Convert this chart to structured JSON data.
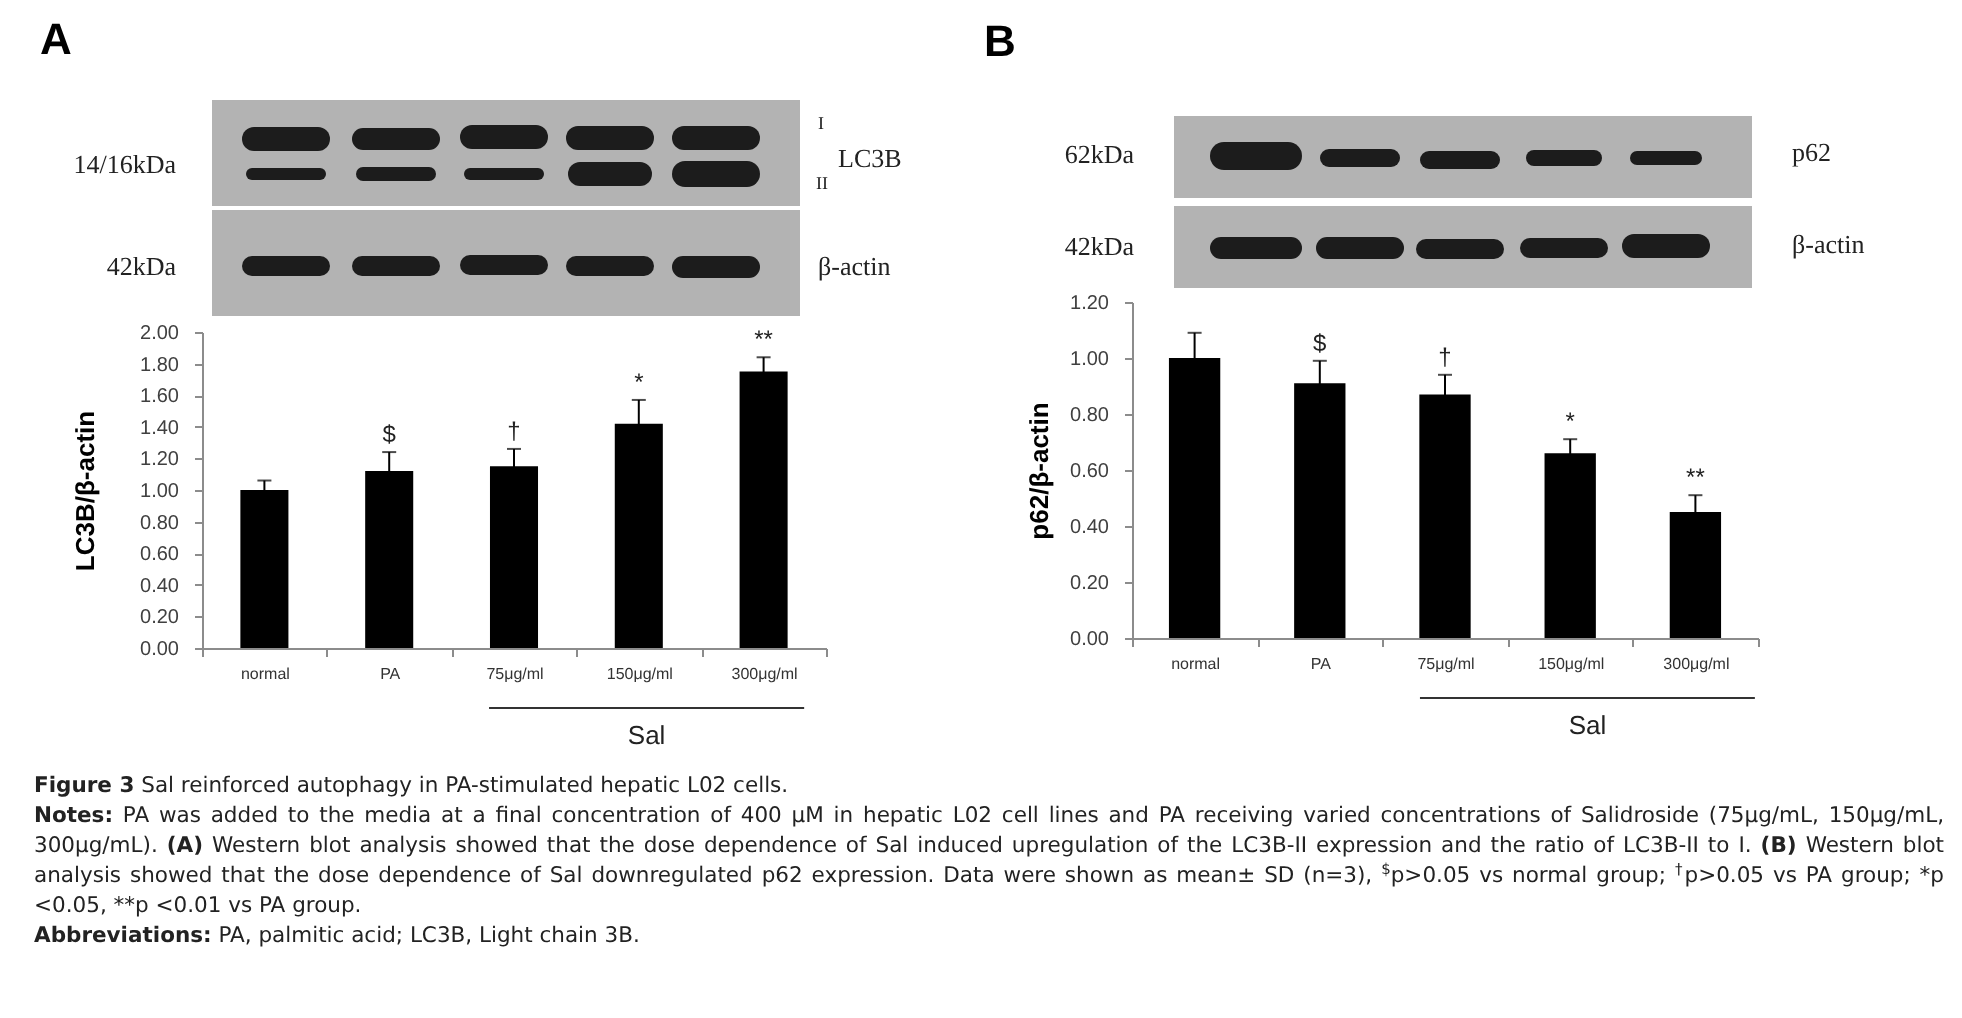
{
  "chart_data": [
    {
      "type": "bar",
      "title": "A",
      "ylabel": "LC3B/β-actin",
      "categories": [
        "normal",
        "PA",
        "75μg/ml",
        "150μg/ml",
        "300μg/ml"
      ],
      "values": [
        1.0,
        1.12,
        1.15,
        1.42,
        1.75
      ],
      "errors": [
        0.06,
        0.12,
        0.11,
        0.15,
        0.09
      ],
      "color": "#000000",
      "ylim": [
        0,
        2
      ],
      "yticks": [
        {
          "value": 0,
          "label": "0.00"
        },
        {
          "value": 0.2,
          "label": "0.20"
        },
        {
          "value": 0.4,
          "label": "0.40"
        },
        {
          "value": 0.6,
          "label": "0.60"
        },
        {
          "value": 0.8,
          "label": "0.80"
        },
        {
          "value": 1,
          "label": "1.00"
        },
        {
          "value": 1.2,
          "label": "1.20"
        },
        {
          "value": 1.4,
          "label": "1.40"
        },
        {
          "value": 1.6,
          "label": "1.60"
        },
        {
          "value": 1.8,
          "label": "1.80"
        },
        {
          "value": 2,
          "label": "2.00"
        }
      ],
      "annotations": [
        "14/16kDa",
        "42kDa",
        "I",
        "II",
        "LC3B",
        "β-actin",
        "Sal",
        {
          "text": "$",
          "x": "PA",
          "y": 1.24
        },
        {
          "text": "†",
          "x": "75μg/ml",
          "y": 1.26
        },
        {
          "text": "*",
          "x": "150μg/ml",
          "y": 1.57
        },
        {
          "text": "**",
          "x": "300μg/ml",
          "y": 1.84
        }
      ]
    },
    {
      "type": "bar",
      "title": "B",
      "ylabel": "p62/β-actin",
      "categories": [
        "normal",
        "PA",
        "75μg/ml",
        "150μg/ml",
        "300μg/ml"
      ],
      "values": [
        1.0,
        0.91,
        0.87,
        0.66,
        0.45
      ],
      "errors": [
        0.09,
        0.08,
        0.07,
        0.05,
        0.06
      ],
      "color": "#000000",
      "ylim": [
        0,
        1.2
      ],
      "yticks": [
        {
          "value": 0,
          "label": "0.00"
        },
        {
          "value": 0.2,
          "label": "0.20"
        },
        {
          "value": 0.4,
          "label": "0.40"
        },
        {
          "value": 0.6,
          "label": "0.60"
        },
        {
          "value": 0.8,
          "label": "0.80"
        },
        {
          "value": 1,
          "label": "1.00"
        },
        {
          "value": 1.2,
          "label": "1.20"
        }
      ],
      "annotations": [
        "62kDa",
        "42kDa",
        "p62",
        "β-actin",
        "Sal",
        {
          "text": "$",
          "x": "PA",
          "y": 0.99
        },
        {
          "text": "†",
          "x": "75μg/ml",
          "y": 0.94
        },
        {
          "text": "*",
          "x": "150μg/ml",
          "y": 0.71
        },
        {
          "text": "**",
          "x": "300μg/ml",
          "y": 0.51
        }
      ]
    },
    {
      "type": "other",
      "title": "Figure 3 Sal reinforced autophagy in PA-stimulated hepatic L02 cells.",
      "annotations": [
        "Notes: PA was added to the media at a final concentration of 400 μM in hepatic L02 cell lines and PA receiving varied concentrations of Salidroside (75μg/mL, 150μg/mL, 300μg/mL). (A) Western blot analysis showed that the dose dependence of Sal induced upregulation of the LC3B-II expression and the ratio of LC3B-II to I. (B) Western blot analysis showed that the dose dependence of Sal downregulated p62 expression. Data were shown as mean± SD (n=3), $^{$}$p>0.05 vs normal group; $^{†}$p>0.05 vs PA group; *p <0.05, **p <0.01 vs PA group.",
        "Abbreviations: PA, palmitic acid; LC3B, Light chain 3B."
      ]
    }
  ]
}
